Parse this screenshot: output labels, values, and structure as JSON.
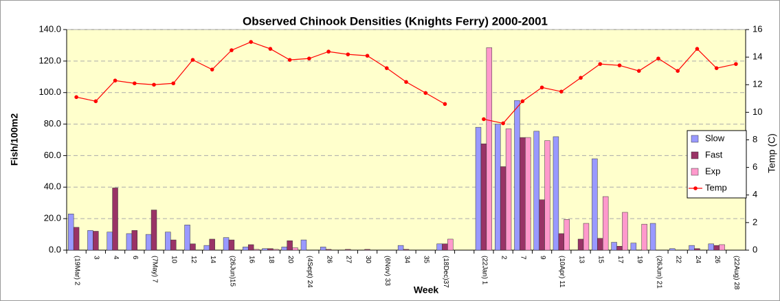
{
  "chart_data": {
    "type": "bar-line",
    "title": "Observed Chinook Densities (Knights Ferry) 2000-2001",
    "x_label": "Week",
    "y_label": "Fish/100m2",
    "y2_label": "Temp (C)",
    "categories": [
      "(19Mar) 2",
      "3",
      "4",
      "6",
      "(7May) 7",
      "10",
      "12",
      "14",
      "(26Jun)15",
      "16",
      "18",
      "20",
      "(4Sept) 24",
      "26",
      "27",
      "30",
      "(6Nov) 33",
      "34",
      "35",
      "(18Dec)37",
      null,
      "(22Jan) 1",
      "2",
      "7",
      "9",
      "(10Apr) 11",
      "13",
      "15",
      "17",
      "19",
      "(26Jun) 21",
      "22",
      "24",
      "26",
      "(22Aug) 28"
    ],
    "series": [
      {
        "name": "Slow",
        "kind": "bar",
        "color": "#9999ff",
        "values": [
          23,
          12.5,
          11.5,
          10.5,
          10,
          11.5,
          16,
          3,
          8,
          2,
          1,
          2,
          6.5,
          2,
          0,
          0,
          0,
          3,
          0,
          4,
          null,
          78,
          80,
          95,
          75.5,
          72,
          0,
          58,
          5,
          4.5,
          17,
          1,
          3,
          4,
          0
        ]
      },
      {
        "name": "Fast",
        "kind": "bar",
        "color": "#993366",
        "values": [
          14.5,
          12,
          39.5,
          12.5,
          25.5,
          6.5,
          4,
          7,
          6.5,
          3.5,
          1,
          6,
          0,
          0.5,
          0.5,
          0.5,
          0,
          0.5,
          0,
          4,
          null,
          67.5,
          53,
          71.5,
          32,
          10.5,
          7,
          7.5,
          2.5,
          0,
          0,
          0,
          1,
          3,
          0
        ]
      },
      {
        "name": "Exp",
        "kind": "bar",
        "color": "#ff99cc",
        "values": [
          0,
          0,
          0,
          0,
          0,
          0,
          0,
          0,
          0,
          0.5,
          0.5,
          1.5,
          0,
          0,
          0,
          0,
          0,
          0,
          0,
          7,
          null,
          128.5,
          77,
          71.5,
          69.5,
          19.5,
          17,
          34,
          24,
          16.5,
          0,
          0,
          0,
          3.5,
          0
        ]
      },
      {
        "name": "Temp",
        "kind": "line",
        "axis": "y2",
        "color": "#ff0000",
        "values": [
          11.1,
          10.8,
          12.3,
          12.1,
          12.0,
          12.1,
          13.8,
          13.1,
          14.5,
          15.1,
          14.6,
          13.8,
          13.9,
          14.4,
          14.2,
          14.1,
          13.2,
          12.2,
          11.4,
          10.6,
          null,
          9.5,
          9.2,
          10.8,
          11.8,
          11.5,
          12.5,
          13.5,
          13.4,
          13.0,
          13.9,
          13.0,
          14.6,
          13.2,
          13.5
        ]
      }
    ],
    "ylim": [
      0,
      140
    ],
    "yticks": [
      {
        "value": 0,
        "label": "0.0"
      },
      {
        "value": 20,
        "label": "20.0"
      },
      {
        "value": 40,
        "label": "40.0"
      },
      {
        "value": 60,
        "label": "60.0"
      },
      {
        "value": 80,
        "label": "80.0"
      },
      {
        "value": 100,
        "label": "100.0"
      },
      {
        "value": 120,
        "label": "120.0"
      },
      {
        "value": 140,
        "label": "140.0"
      }
    ],
    "y2lim": [
      0,
      16
    ],
    "y2ticks": [
      0,
      2,
      4,
      6,
      8,
      10,
      12,
      14,
      16
    ],
    "grid": true,
    "legend": "right",
    "background": "#ffffcc"
  }
}
